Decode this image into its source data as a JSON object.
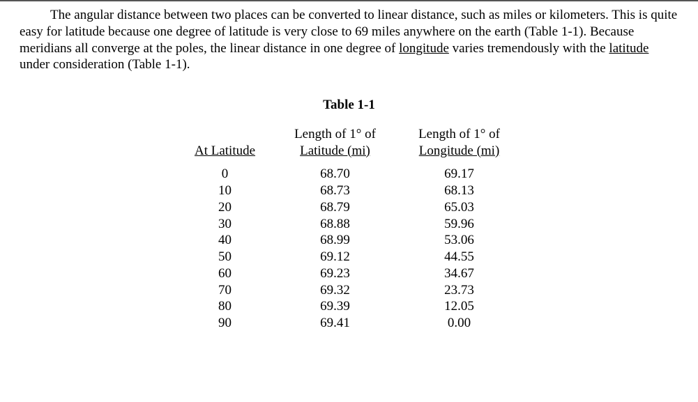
{
  "paragraph": {
    "text_before_longitude": "The angular distance between two places can be converted to linear distance, such as miles or kilometers.  This is quite easy for latitude because one degree of latitude is very close to 69 miles anywhere on the earth (Table 1-1).  Because meridians all converge at the poles, the linear distance in one degree of ",
    "longitude_u": "longitude",
    "text_mid": " varies tremendously with the ",
    "latitude_u": "latitude",
    "text_after": " under consideration (Table 1-1)."
  },
  "table": {
    "title": "Table 1-1",
    "columns": {
      "col1": "At Latitude",
      "col2_line1": "Length of 1° of",
      "col2_line2": "Latitude (mi)",
      "col3_line1": "Length of 1° of",
      "col3_line2": "Longitude (mi)"
    },
    "rows": [
      {
        "lat": "0",
        "len_lat": "68.70",
        "len_lon": "69.17"
      },
      {
        "lat": "10",
        "len_lat": "68.73",
        "len_lon": "68.13"
      },
      {
        "lat": "20",
        "len_lat": "68.79",
        "len_lon": "65.03"
      },
      {
        "lat": "30",
        "len_lat": "68.88",
        "len_lon": "59.96"
      },
      {
        "lat": "40",
        "len_lat": "68.99",
        "len_lon": "53.06"
      },
      {
        "lat": "50",
        "len_lat": "69.12",
        "len_lon": "44.55"
      },
      {
        "lat": "60",
        "len_lat": "69.23",
        "len_lon": "34.67"
      },
      {
        "lat": "70",
        "len_lat": "69.32",
        "len_lon": "23.73"
      },
      {
        "lat": "80",
        "len_lat": "69.39",
        "len_lon": "12.05"
      },
      {
        "lat": "90",
        "len_lat": "69.41",
        "len_lon": "0.00"
      }
    ]
  },
  "style": {
    "font_family": "Times New Roman",
    "font_size_pt": 14,
    "text_color": "#000000",
    "background_color": "#ffffff",
    "top_border_color": "#555555"
  }
}
